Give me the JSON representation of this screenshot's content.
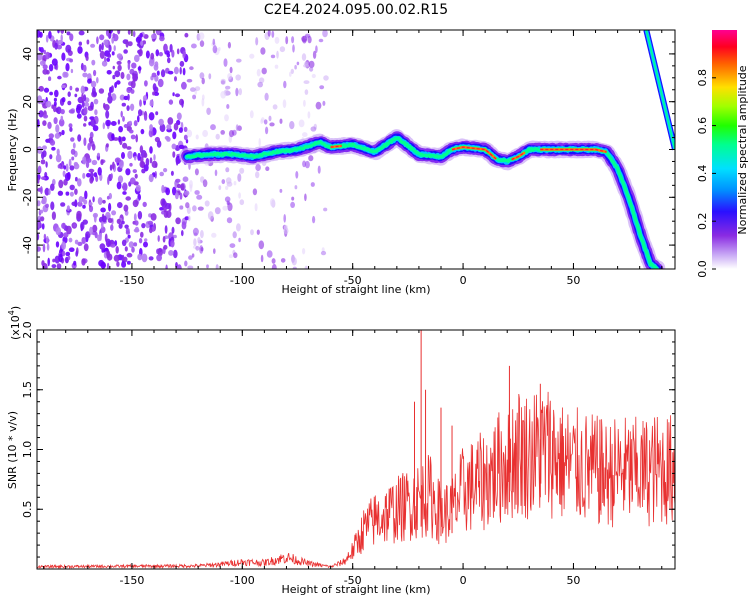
{
  "title": "C2E4.2024.095.00.02.R15",
  "colors": {
    "snr_line": "#e83030",
    "colormap": [
      "#ffffff",
      "#b98cf0",
      "#8a2be2",
      "#6a00ff",
      "#1a10ff",
      "#00a0ff",
      "#00ffe0",
      "#00ff40",
      "#a0ff00",
      "#ffff00",
      "#ff8000",
      "#ff0000",
      "#ff0080"
    ]
  },
  "chart_data": [
    {
      "type": "heatmap",
      "title": "C2E4.2024.095.00.02.R15",
      "xlabel": "Height of straight line (km)",
      "ylabel": "Frequency (Hz)",
      "xlim": [
        -193,
        96
      ],
      "ylim": [
        -50,
        50
      ],
      "xticks": [
        -150,
        -100,
        -50,
        0,
        50
      ],
      "xtick_labels": [
        "-150",
        "-100",
        "-50",
        "0",
        "50"
      ],
      "yticks": [
        40,
        20,
        0,
        -20,
        -40
      ],
      "ytick_labels": [
        "40",
        "20",
        "0",
        "-20",
        "-40"
      ],
      "colorbar": {
        "label": "Normalized spectral amplitude",
        "range": [
          0,
          1
        ],
        "ticks": [
          0.0,
          0.2,
          0.4,
          0.6,
          0.8
        ],
        "tick_labels": [
          "0.0",
          "0.2",
          "0.4",
          "0.6",
          "0.8"
        ]
      },
      "ridge": {
        "description_values": "center frequency (Hz) of the strong signal band vs height (km)",
        "x": [
          -125,
          -115,
          -105,
          -95,
          -85,
          -75,
          -65,
          -60,
          -50,
          -40,
          -30,
          -27,
          -20,
          -10,
          -5,
          0,
          10,
          15,
          20,
          25,
          30,
          35,
          40,
          50,
          60,
          65,
          70,
          75,
          80,
          85,
          88
        ],
        "y": [
          -3,
          -2,
          -2,
          -3,
          -1,
          0,
          3,
          1,
          2,
          -1,
          5,
          3,
          -2,
          -3,
          0,
          1,
          0,
          -4,
          -5,
          -3,
          0,
          0,
          0,
          0,
          0,
          -1,
          -8,
          -20,
          -35,
          -48,
          -50
        ],
        "second_branch_x": [
          83,
          96
        ],
        "second_branch_y": [
          50,
          0
        ]
      },
      "noise_region_x": [
        -193,
        -62
      ]
    },
    {
      "type": "line",
      "xlabel": "Height of straight line (km)",
      "ylabel": "SNR (10 * v/v)",
      "y_multiplier_label": "(x10",
      "y_multiplier_exp": "4",
      "y_multiplier_close": ")",
      "xlim": [
        -193,
        96
      ],
      "ylim": [
        0,
        20000
      ],
      "xticks": [
        -150,
        -100,
        -50,
        0,
        50
      ],
      "xtick_labels": [
        "-150",
        "-100",
        "-50",
        "0",
        "50"
      ],
      "yticks": [
        5000,
        10000,
        15000,
        20000
      ],
      "ytick_labels": [
        "0.5",
        "1.0",
        "1.5",
        "2.0"
      ],
      "series": [
        {
          "envelope_x": [
            -193,
            -120,
            -110,
            -100,
            -90,
            -80,
            -70,
            -60,
            -55,
            -50,
            -45,
            -40,
            -35,
            -30,
            -25,
            -20,
            -15,
            -10,
            -5,
            0,
            10,
            15,
            20,
            25,
            30,
            35,
            40,
            45,
            50,
            60,
            65,
            70,
            80,
            90,
            96
          ],
          "envelope_y": [
            300,
            400,
            600,
            900,
            800,
            1500,
            700,
            300,
            800,
            1800,
            4000,
            5000,
            5500,
            6000,
            6500,
            7000,
            7500,
            5500,
            6000,
            8000,
            9000,
            10000,
            11000,
            12000,
            11500,
            12000,
            12000,
            10800,
            10500,
            10000,
            9500,
            10000,
            9800,
            10200,
            10000
          ],
          "spike_x": [
            -22,
            -19,
            -17,
            -10,
            -5,
            21,
            35,
            62
          ],
          "spike_y": [
            14000,
            20000,
            15000,
            13500,
            12000,
            17000,
            15500,
            12500
          ]
        }
      ]
    }
  ]
}
